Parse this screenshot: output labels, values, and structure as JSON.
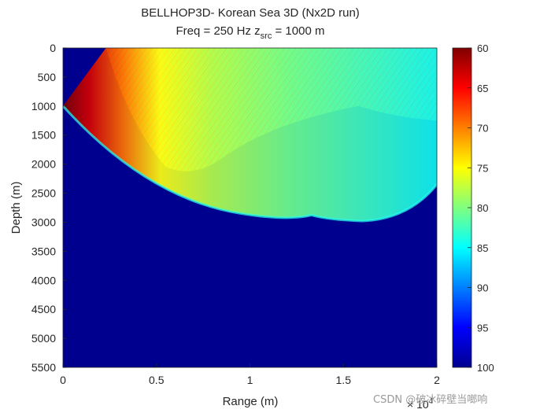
{
  "chart_data": {
    "type": "heatmap",
    "title_line1": "BELLHOP3D- Korean Sea 3D (Nx2D run)",
    "title_line2_prefix": "Freq = 250 Hz    z",
    "title_line2_sub": "src",
    "title_line2_suffix": " = 1000 m",
    "xlabel": "Range (m)",
    "ylabel": "Depth (m)",
    "xlim": [
      0,
      20000
    ],
    "ylim": [
      0,
      5500
    ],
    "x_exponent_label": "× 10",
    "x_exponent_power": "4",
    "x_ticks": [
      0,
      0.5,
      1,
      1.5,
      2
    ],
    "x_tick_labels": [
      "0",
      "0.5",
      "1",
      "1.5",
      "2"
    ],
    "y_ticks": [
      0,
      500,
      1000,
      1500,
      2000,
      2500,
      3000,
      3500,
      4000,
      4500,
      5000,
      5500
    ],
    "y_tick_labels": [
      "0",
      "500",
      "1000",
      "1500",
      "2000",
      "2500",
      "3000",
      "3500",
      "4000",
      "4500",
      "5000",
      "5500"
    ],
    "colormap": "jet (reversed)",
    "clim": [
      60,
      100
    ],
    "colorbar_ticks": [
      60,
      65,
      70,
      75,
      80,
      85,
      90,
      95,
      100
    ],
    "colorbar_tick_labels": [
      "60",
      "65",
      "70",
      "75",
      "80",
      "85",
      "90",
      "95",
      "100"
    ],
    "background_value": 100,
    "source": {
      "range": 0,
      "depth": 1000
    },
    "beam_fan": {
      "upper_edge_surface_range": 2300,
      "lower_edge_max_depth": 2980,
      "lower_edge_max_depth_range": 16000,
      "cusp_range": 13300,
      "cusp_depth": 2880,
      "convergence_range": 15800,
      "convergence_depth": 1000
    },
    "annotations": []
  },
  "watermark": "CSDN @破冰碎壁当啷响"
}
